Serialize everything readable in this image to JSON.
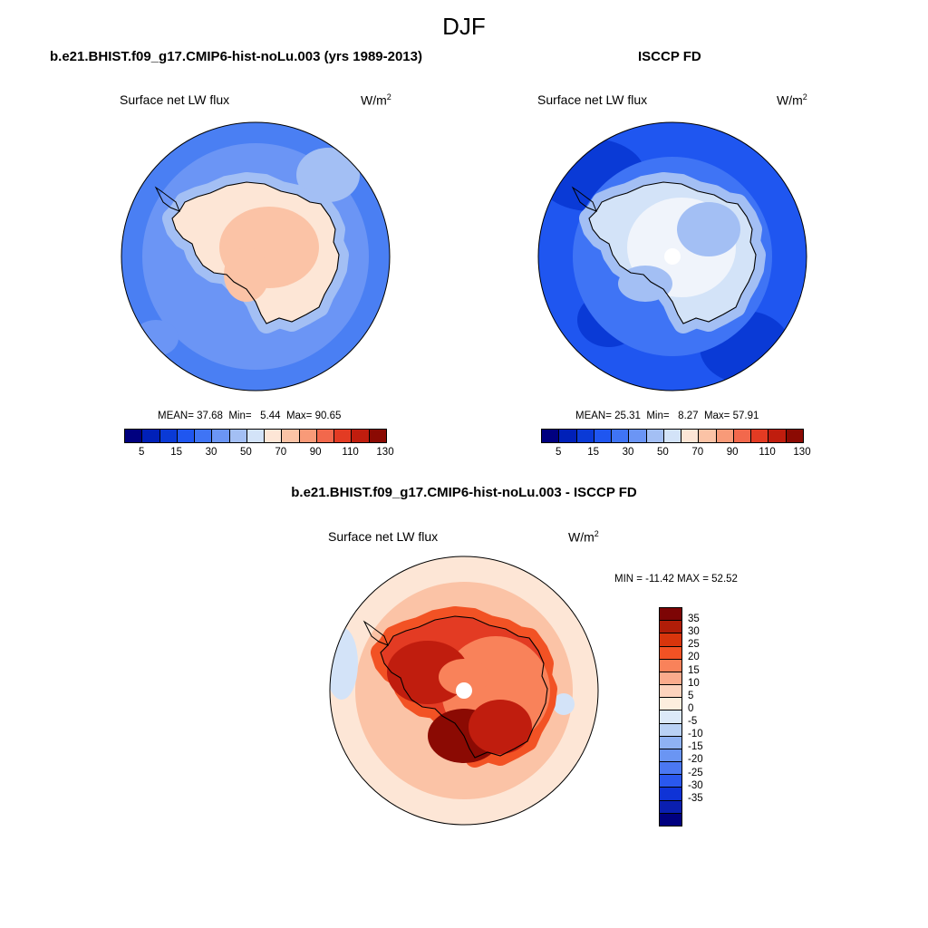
{
  "suptitle": "DJF",
  "panels": {
    "model": {
      "title": "b.e21.BHIST.f09_g17.CMIP6-hist-noLu.003 (yrs 1989-2013)",
      "left_label": "Surface net LW flux",
      "units": "W/m",
      "units_exp": "2",
      "stats": {
        "mean_label": "MEAN=",
        "mean": "37.68",
        "min_label": "Min=",
        "min": "5.44",
        "max_label": "Max=",
        "max": "90.65"
      }
    },
    "obs": {
      "title": "ISCCP FD",
      "left_label": "Surface net LW flux",
      "units": "W/m",
      "units_exp": "2",
      "stats": {
        "mean_label": "MEAN=",
        "mean": "25.31",
        "min_label": "Min=",
        "min": "8.27",
        "max_label": "Max=",
        "max": "57.91"
      }
    },
    "diff": {
      "title": "b.e21.BHIST.f09_g17.CMIP6-hist-noLu.003 - ISCCP FD",
      "left_label": "Surface net LW flux",
      "units": "W/m",
      "units_exp": "2",
      "stats": {
        "text": "MIN = -11.42 MAX =  52.52"
      }
    }
  },
  "colorbar_main": {
    "colors": [
      "#00007f",
      "#0020b8",
      "#0a3ad6",
      "#1f56f0",
      "#3f74f5",
      "#6b95f5",
      "#a3bff4",
      "#d3e3f8",
      "#fde6d6",
      "#fbc3a6",
      "#f89a78",
      "#f2684c",
      "#e33b23",
      "#c01d0e",
      "#8b0a03"
    ],
    "tick_labels": [
      "5",
      "15",
      "30",
      "50",
      "70",
      "90",
      "110",
      "130"
    ]
  },
  "colorbar_diff": {
    "colors": [
      "#7d0505",
      "#b01d08",
      "#d8350c",
      "#f25224",
      "#f9825a",
      "#fbab8c",
      "#fdd3bd",
      "#fdeede",
      "#dce9f8",
      "#b9d1f5",
      "#8fb2f3",
      "#6a95f3",
      "#4b78f2",
      "#2a58ee",
      "#0f33d6",
      "#0a1fb0",
      "#00007f"
    ],
    "tick_labels": [
      "35",
      "30",
      "25",
      "20",
      "15",
      "10",
      "5",
      "0",
      "-5",
      "-10",
      "-15",
      "-20",
      "-25",
      "-30",
      "-35"
    ]
  },
  "maps": [
    {
      "name": "model",
      "ocean_color": "#4a7ff3",
      "ocean_inner_color": "#6b95f5",
      "coast_ring_color": "#a3bff4",
      "continent_color": "#fde6d6",
      "interior_color": "#fbc3a6"
    },
    {
      "name": "obs",
      "ocean_color": "#1f56f0",
      "ocean_inner_color": "#3f74f5",
      "coast_ring_color": "#a3bff4",
      "continent_color": "#d3e3f8",
      "interior_color": "#f0f4fb"
    },
    {
      "name": "diff",
      "ocean_color": "#fde6d6",
      "ocean_inner_color": "#fbc3a6",
      "coast_ring_color": "#f25224",
      "continent_color": "#e33b23",
      "interior_color": "#f9825a"
    }
  ]
}
